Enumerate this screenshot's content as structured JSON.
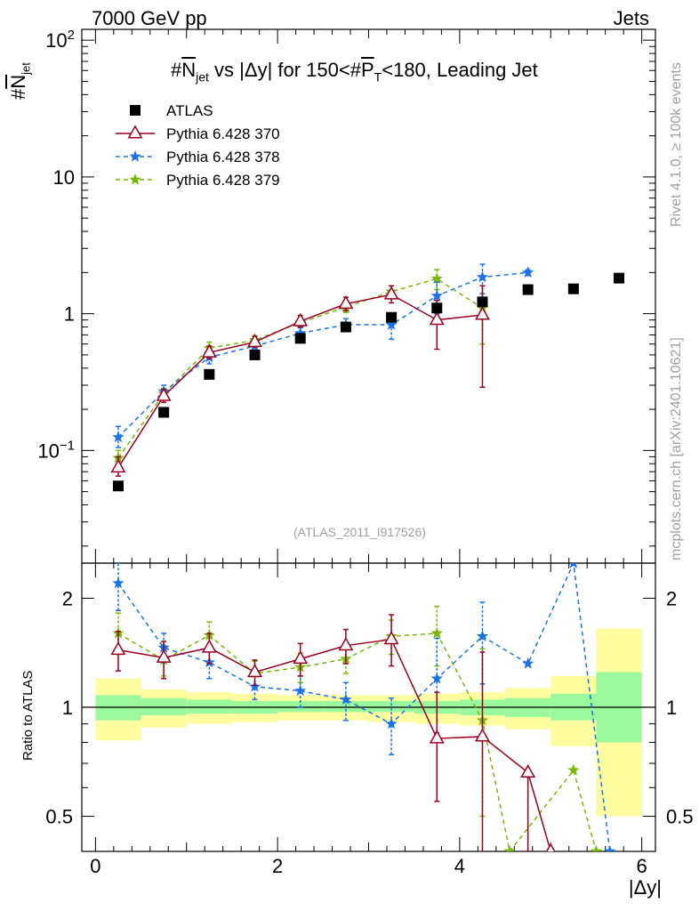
{
  "header": {
    "left": "7000 GeV pp",
    "right": "Jets"
  },
  "side_labels": {
    "top": "Rivet 4.1.0, ≥ 100k events",
    "bottom": "mcplots.cern.ch [arXiv:2401.10621]"
  },
  "colors": {
    "atlas": "#000000",
    "p370": "#9b0020",
    "p378": "#1a73e8",
    "p379": "#76b900",
    "band_inner": "#9cf89c",
    "band_outer": "#fefea0"
  },
  "chart_data": [
    {
      "type": "scatter",
      "title": "#N_jet vs |Δy| for 150<#P_T<180, Leading Jet",
      "title_parts": {
        "a": "#",
        "b": "N",
        "c": "jet",
        "d": " vs |Δy| for 150<#",
        "e": "P",
        "f": "T",
        "g": "<180, Leading Jet"
      },
      "ylabel": "#N_jet",
      "ylabel_parts": {
        "a": "#",
        "b": "N",
        "c": "jet"
      },
      "yscale": "log",
      "ylim": [
        0.015,
        120
      ],
      "xlim": [
        -0.15,
        6.15
      ],
      "yticks": [
        {
          "v": 0.1,
          "base": "10",
          "exp": "−1"
        },
        {
          "v": 1,
          "base": "1",
          "exp": ""
        },
        {
          "v": 10,
          "base": "10",
          "exp": ""
        },
        {
          "v": 100,
          "base": "10",
          "exp": "2"
        }
      ],
      "reference": "(ATLAS_2011_I917526)",
      "legend": [
        "ATLAS",
        "Pythia 6.428 370",
        "Pythia 6.428 378",
        "Pythia 6.428 379"
      ],
      "legend_position": "top-left",
      "series": [
        {
          "name": "ATLAS",
          "marker": "square",
          "x": [
            0.25,
            0.75,
            1.25,
            1.75,
            2.25,
            2.75,
            3.25,
            3.75,
            4.25,
            4.75,
            5.25,
            5.75
          ],
          "y": [
            0.055,
            0.19,
            0.36,
            0.5,
            0.66,
            0.8,
            0.94,
            1.1,
            1.22,
            1.5,
            1.52,
            1.82
          ]
        },
        {
          "name": "Pythia 6.428 370",
          "marker": "triangle",
          "line": "solid",
          "x": [
            0.25,
            0.75,
            1.25,
            1.75,
            2.25,
            2.75,
            3.25,
            3.75,
            4.25
          ],
          "y": [
            0.075,
            0.25,
            0.52,
            0.62,
            0.88,
            1.18,
            1.38,
            0.9,
            0.98
          ],
          "err_lo": [
            0.065,
            0.225,
            0.47,
            0.57,
            0.8,
            1.05,
            1.2,
            0.55,
            0.29
          ],
          "err_hi": [
            0.09,
            0.28,
            0.58,
            0.68,
            0.97,
            1.32,
            1.6,
            1.25,
            1.6
          ]
        },
        {
          "name": "Pythia 6.428 378",
          "marker": "star",
          "line": "dashed",
          "x": [
            0.25,
            0.75,
            1.25,
            1.75,
            2.25,
            2.75,
            3.25,
            3.75,
            4.25,
            4.75
          ],
          "y": [
            0.125,
            0.27,
            0.48,
            0.58,
            0.72,
            0.83,
            0.83,
            1.35,
            1.85,
            2.0
          ],
          "err_lo": [
            0.105,
            0.24,
            0.43,
            0.53,
            0.66,
            0.75,
            0.65,
            1.0,
            1.4,
            1.9
          ],
          "err_hi": [
            0.15,
            0.3,
            0.53,
            0.63,
            0.79,
            0.92,
            1.0,
            1.7,
            2.3,
            2.1
          ]
        },
        {
          "name": "Pythia 6.428 379",
          "marker": "star",
          "line": "dashed",
          "x": [
            0.25,
            0.75,
            1.25,
            1.75,
            2.25,
            2.75,
            3.25,
            3.75,
            4.25
          ],
          "y": [
            0.088,
            0.26,
            0.56,
            0.64,
            0.86,
            1.12,
            1.45,
            1.8,
            1.1
          ],
          "err_lo": [
            0.075,
            0.235,
            0.5,
            0.59,
            0.79,
            1.02,
            1.3,
            1.5,
            0.6
          ],
          "err_hi": [
            0.1,
            0.285,
            0.62,
            0.69,
            0.93,
            1.22,
            1.6,
            2.1,
            1.6
          ]
        }
      ]
    },
    {
      "type": "scatter",
      "ylabel": "Ratio to ATLAS",
      "xlabel": "|Δy|",
      "yscale": "log",
      "ylim": [
        0.4,
        2.5
      ],
      "xlim": [
        -0.15,
        6.15
      ],
      "yticks": [
        0.5,
        1,
        2
      ],
      "ytick_labels": [
        "0.5",
        "1",
        "2"
      ],
      "xticks": [
        0,
        2,
        4,
        6
      ],
      "xtick_labels": [
        "0",
        "2",
        "4",
        "6"
      ],
      "bands": {
        "x_edges": [
          0,
          0.5,
          1,
          1.5,
          2,
          2.5,
          3,
          3.5,
          4,
          4.5,
          5,
          5.5,
          6
        ],
        "inner_lo": [
          0.92,
          0.95,
          0.96,
          0.96,
          0.97,
          0.97,
          0.97,
          0.96,
          0.95,
          0.94,
          0.92,
          0.8
        ],
        "inner_hi": [
          1.08,
          1.06,
          1.05,
          1.04,
          1.04,
          1.04,
          1.04,
          1.04,
          1.05,
          1.06,
          1.09,
          1.25
        ],
        "outer_lo": [
          0.81,
          0.88,
          0.9,
          0.91,
          0.92,
          0.92,
          0.91,
          0.9,
          0.89,
          0.87,
          0.78,
          0.5
        ],
        "outer_hi": [
          1.2,
          1.12,
          1.1,
          1.09,
          1.08,
          1.08,
          1.08,
          1.09,
          1.1,
          1.13,
          1.22,
          1.65
        ]
      },
      "series": [
        {
          "name": "Pythia 6.428 370",
          "marker": "triangle",
          "line": "solid",
          "x": [
            0.25,
            0.75,
            1.25,
            1.75,
            2.25,
            2.75,
            3.25,
            3.75,
            4.25,
            4.75,
            5.0
          ],
          "y": [
            1.44,
            1.37,
            1.46,
            1.25,
            1.36,
            1.48,
            1.54,
            0.82,
            0.83,
            0.66,
            0.4
          ],
          "err_lo": [
            1.26,
            1.2,
            1.32,
            1.15,
            1.22,
            1.32,
            1.3,
            0.55,
            0.26,
            0.4,
            null
          ],
          "err_hi": [
            1.62,
            1.52,
            1.6,
            1.35,
            1.5,
            1.64,
            1.8,
            1.1,
            1.42,
            0.66,
            null
          ]
        },
        {
          "name": "Pythia 6.428 378",
          "marker": "star",
          "line": "dashed",
          "x": [
            0.25,
            0.75,
            1.25,
            1.75,
            2.25,
            2.75,
            3.25,
            3.75,
            4.25,
            4.75,
            5.25,
            5.65
          ],
          "y": [
            2.2,
            1.46,
            1.33,
            1.14,
            1.11,
            1.05,
            0.9,
            1.2,
            1.57,
            1.32,
            2.5,
            0.4
          ],
          "err_lo": [
            1.85,
            1.33,
            1.2,
            1.05,
            1.0,
            0.92,
            0.74,
            0.85,
            1.16,
            null,
            null,
            null
          ],
          "err_hi": [
            2.5,
            1.6,
            1.46,
            1.23,
            1.22,
            1.17,
            1.06,
            1.55,
            1.95,
            null,
            null,
            null
          ]
        },
        {
          "name": "Pythia 6.428 379",
          "marker": "star",
          "line": "dashed",
          "x": [
            0.25,
            0.75,
            1.25,
            1.75,
            2.25,
            2.75,
            3.25,
            3.75,
            4.25,
            4.55,
            4.75,
            5.25,
            5.5
          ],
          "y": [
            1.6,
            1.35,
            1.58,
            1.24,
            1.29,
            1.36,
            1.57,
            1.6,
            0.92,
            0.4,
            null,
            0.67,
            0.4
          ],
          "err_lo": [
            1.4,
            1.22,
            1.44,
            1.14,
            1.17,
            1.24,
            1.4,
            1.3,
            0.5,
            null,
            null,
            null,
            null
          ],
          "err_hi": [
            1.82,
            1.48,
            1.72,
            1.34,
            1.41,
            1.48,
            1.74,
            1.9,
            1.45,
            null,
            null,
            null,
            null
          ]
        }
      ]
    }
  ]
}
